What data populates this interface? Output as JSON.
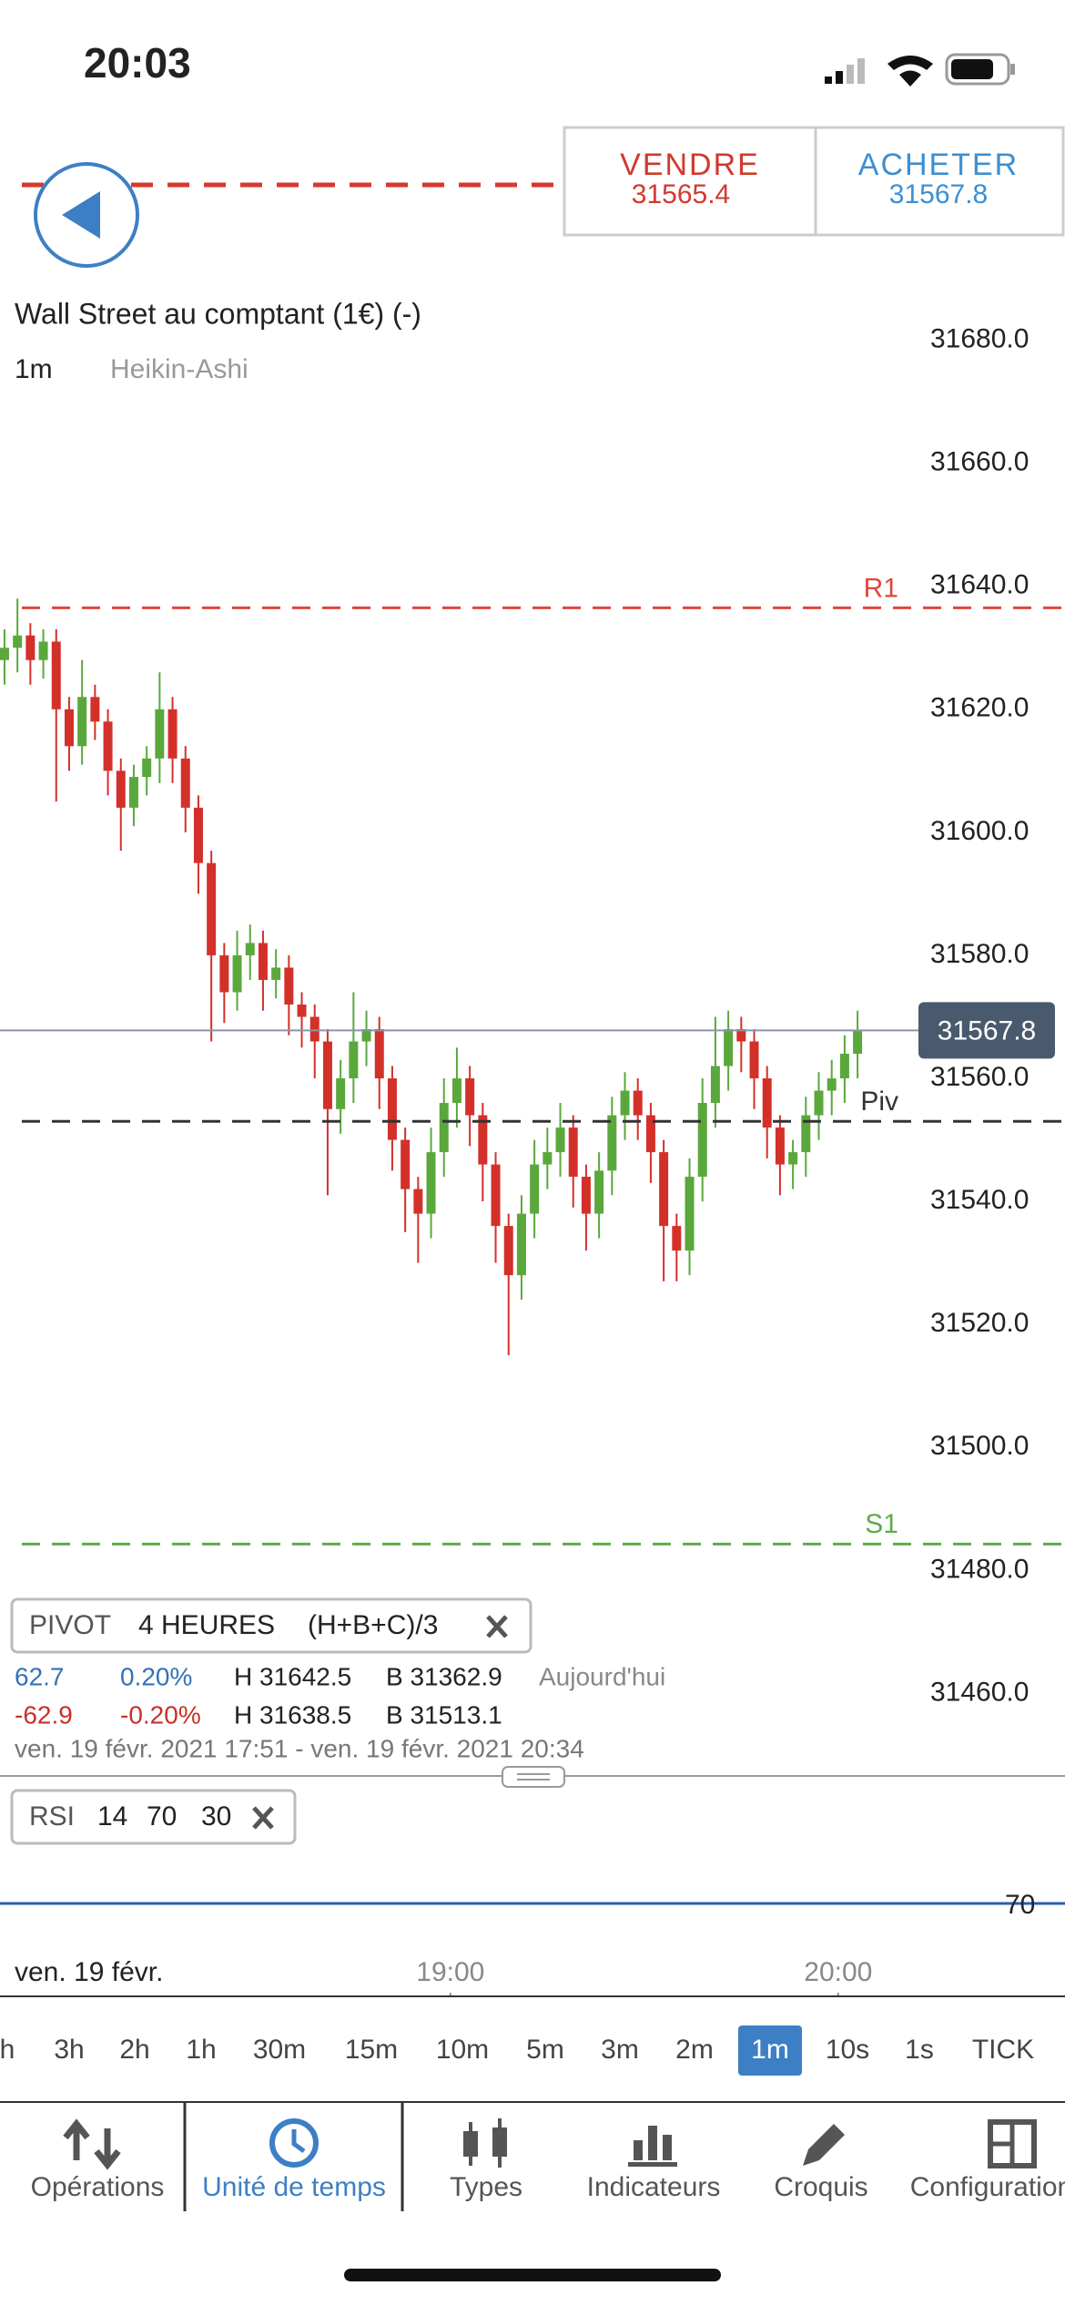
{
  "status_bar": {
    "time": "20:03"
  },
  "trade": {
    "sell_label": "VENDRE",
    "sell_price": 31565.4,
    "buy_label": "ACHETER",
    "buy_price": 31567.8
  },
  "instrument": {
    "name": "Wall Street au comptant (1€) (-)",
    "timeframe": "1m",
    "chart_type": "Heikin-Ashi"
  },
  "chart_data": {
    "type": "candlestick",
    "x": [
      1071,
      1073,
      1075,
      1077,
      1079,
      1081,
      1083,
      1085,
      1087,
      1089,
      1091,
      1093,
      1095,
      1097,
      1099,
      1101,
      1103,
      1105,
      1107,
      1109,
      1111,
      1113,
      1115,
      1117,
      1119,
      1121,
      1123,
      1125,
      1127,
      1129,
      1131,
      1133,
      1135,
      1137,
      1139,
      1141,
      1143,
      1145,
      1147,
      1149,
      1151,
      1153,
      1155,
      1157,
      1159,
      1161,
      1163,
      1165,
      1167,
      1169,
      1171,
      1173,
      1175,
      1177,
      1179,
      1181,
      1183,
      1185,
      1187,
      1189,
      1191,
      1193,
      1195,
      1197,
      1199,
      1201,
      1203
    ],
    "open": [
      31628,
      31630,
      31632,
      31628,
      31631,
      31620,
      31614,
      31622,
      31618,
      31610,
      31604,
      31609,
      31612,
      31620,
      31612,
      31604,
      31595,
      31580,
      31574,
      31580,
      31582,
      31576,
      31578,
      31572,
      31570,
      31566,
      31555,
      31560,
      31566,
      31568,
      31560,
      31550,
      31542,
      31538,
      31548,
      31556,
      31560,
      31554,
      31546,
      31536,
      31528,
      31538,
      31546,
      31548,
      31552,
      31544,
      31538,
      31545,
      31554,
      31558,
      31554,
      31548,
      31536,
      31532,
      31544,
      31556,
      31562,
      31568,
      31566,
      31560,
      31552,
      31546,
      31548,
      31554,
      31558,
      31560,
      31564
    ],
    "high": [
      31633,
      31638,
      31634,
      31633,
      31633,
      31622,
      31628,
      31624,
      31620,
      31612,
      31611,
      31614,
      31626,
      31622,
      31614,
      31606,
      31597,
      31582,
      31584,
      31585,
      31584,
      31581,
      31580,
      31574,
      31572,
      31568,
      31563,
      31574,
      31571,
      31570,
      31562,
      31552,
      31544,
      31552,
      31560,
      31565,
      31562,
      31556,
      31548,
      31538,
      31541,
      31550,
      31552,
      31556,
      31554,
      31546,
      31548,
      31557,
      31561,
      31560,
      31556,
      31550,
      31538,
      31547,
      31560,
      31570,
      31571,
      31570,
      31568,
      31562,
      31554,
      31550,
      31557,
      31561,
      31563,
      31567,
      31571
    ],
    "low": [
      31624,
      31626,
      31624,
      31625,
      31605,
      31610,
      31611,
      31615,
      31606,
      31597,
      31601,
      31606,
      31608,
      31608,
      31600,
      31590,
      31566,
      31569,
      31571,
      31576,
      31571,
      31573,
      31567,
      31565,
      31560,
      31541,
      31551,
      31556,
      31562,
      31555,
      31545,
      31535,
      31530,
      31534,
      31544,
      31552,
      31549,
      31540,
      31530,
      31515,
      31524,
      31534,
      31542,
      31544,
      31539,
      31532,
      31534,
      31541,
      31550,
      31550,
      31543,
      31527,
      31527,
      31528,
      31540,
      31552,
      31558,
      31561,
      31555,
      31547,
      31541,
      31542,
      31544,
      31550,
      31554,
      31556,
      31560
    ],
    "close": [
      31630,
      31632,
      31628,
      31631,
      31620,
      31614,
      31622,
      31618,
      31610,
      31604,
      31609,
      31612,
      31620,
      31612,
      31604,
      31595,
      31580,
      31574,
      31580,
      31582,
      31576,
      31578,
      31572,
      31570,
      31566,
      31555,
      31560,
      31566,
      31568,
      31560,
      31550,
      31542,
      31538,
      31548,
      31556,
      31560,
      31554,
      31546,
      31536,
      31528,
      31538,
      31546,
      31548,
      31552,
      31544,
      31538,
      31545,
      31554,
      31558,
      31554,
      31548,
      31536,
      31532,
      31544,
      31556,
      31562,
      31568,
      31566,
      31560,
      31552,
      31546,
      31548,
      31554,
      31558,
      31560,
      31564,
      31567.8
    ],
    "up_color": "#5aa83c",
    "down_color": "#d4302a",
    "xlim": [
      1070.3,
      1235.1
    ],
    "xticks": [
      {
        "value": 1140,
        "label": "19:00"
      },
      {
        "value": 1200,
        "label": "20:00"
      }
    ],
    "x_start_label": "ven. 19 févr.",
    "ylim": [
      31446,
      31690
    ],
    "yticks": [
      {
        "value": 31680,
        "label": "31680.0"
      },
      {
        "value": 31660,
        "label": "31660.0"
      },
      {
        "value": 31640,
        "label": "31640.0"
      },
      {
        "value": 31620,
        "label": "31620.0"
      },
      {
        "value": 31600,
        "label": "31600.0"
      },
      {
        "value": 31580,
        "label": "31580.0"
      },
      {
        "value": 31560,
        "label": "31560.0"
      },
      {
        "value": 31540,
        "label": "31540.0"
      },
      {
        "value": 31520,
        "label": "31520.0"
      },
      {
        "value": 31500,
        "label": "31500.0"
      },
      {
        "value": 31480,
        "label": "31480.0"
      },
      {
        "value": 31460,
        "label": "31460.0"
      }
    ],
    "current_price": 31567.8,
    "levels": [
      {
        "name": "R1",
        "value": 31636.5,
        "color": "#e0463c"
      },
      {
        "name": "Piv",
        "value": 31553,
        "color": "#333333"
      },
      {
        "name": "S1",
        "value": 31484.3,
        "color": "#5aae46"
      }
    ]
  },
  "pivot_panel": {
    "title": "PIVOT",
    "period": "4 HEURES",
    "formula": "(H+B+C)/3",
    "rows": [
      [
        "62.7",
        "0.20%",
        "H 31642.5",
        "B 31362.9",
        "Aujourd'hui"
      ],
      [
        "-62.9",
        "-0.20%",
        "H 31638.5",
        "B 31513.1"
      ]
    ],
    "range": "ven. 19 févr. 2021 17:51 - ven. 19 févr. 2021 20:34"
  },
  "rsi_panel": {
    "name": "RSI",
    "params": [
      14,
      70,
      30
    ],
    "level": 70
  },
  "timeframes": {
    "items": [
      "h",
      "3h",
      "2h",
      "1h",
      "30m",
      "15m",
      "10m",
      "5m",
      "3m",
      "2m",
      "1m",
      "10s",
      "1s",
      "TICK"
    ],
    "selected": 10
  },
  "tabs": {
    "items": [
      "Opérations",
      "Unité de temps",
      "Types",
      "Indicateurs",
      "Croquis",
      "Configuration"
    ],
    "selected": 1
  }
}
